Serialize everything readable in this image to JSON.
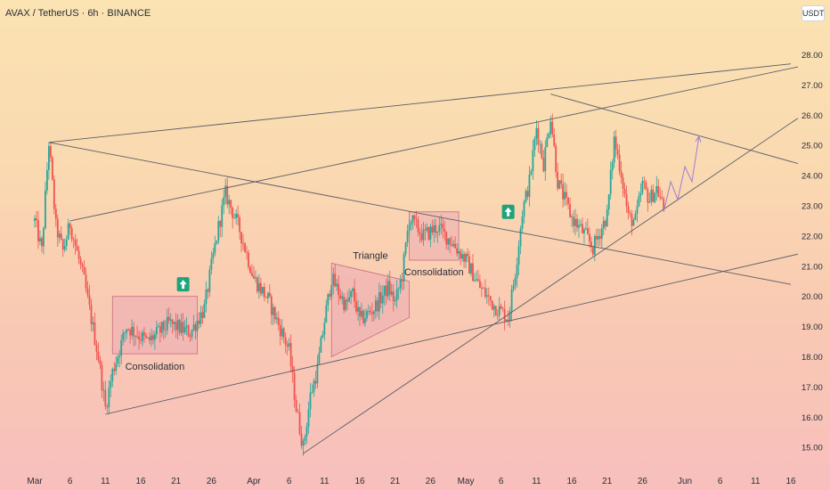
{
  "symbol_line": "AVAX / TetherUS · 6h · BINANCE",
  "currency_badge": "USDT",
  "chart_data": {
    "type": "candlestick",
    "symbol": "AVAX / TetherUS",
    "interval": "6h",
    "exchange": "BINANCE",
    "ylim": [
      14.5,
      28.6
    ],
    "y_ticks": [
      "15.00",
      "16.00",
      "17.00",
      "18.00",
      "19.00",
      "20.00",
      "21.00",
      "22.00",
      "23.00",
      "24.00",
      "25.00",
      "26.00",
      "27.00",
      "28.00"
    ],
    "x_ticks": [
      "Mar",
      "6",
      "11",
      "16",
      "21",
      "26",
      "Apr",
      "6",
      "11",
      "16",
      "21",
      "26",
      "May",
      "6",
      "11",
      "16",
      "21",
      "26",
      "Jun",
      "6",
      "11",
      "16"
    ],
    "price_path_anchors": [
      {
        "date": "Mar 1",
        "price": 22.5
      },
      {
        "date": "Mar 2",
        "price": 21.5
      },
      {
        "date": "Mar 3",
        "price": 25.1
      },
      {
        "date": "Mar 4",
        "price": 22.3
      },
      {
        "date": "Mar 5",
        "price": 21.5
      },
      {
        "date": "Mar 6",
        "price": 22.4
      },
      {
        "date": "Mar 8",
        "price": 20.5
      },
      {
        "date": "Mar 10",
        "price": 18.0
      },
      {
        "date": "Mar 11",
        "price": 16.3
      },
      {
        "date": "Mar 12",
        "price": 17.5
      },
      {
        "date": "Mar 14",
        "price": 19.0
      },
      {
        "date": "Mar 17",
        "price": 18.5
      },
      {
        "date": "Mar 20",
        "price": 19.1
      },
      {
        "date": "Mar 23",
        "price": 18.8
      },
      {
        "date": "Mar 25",
        "price": 19.6
      },
      {
        "date": "Mar 26",
        "price": 21.0
      },
      {
        "date": "Mar 27",
        "price": 22.3
      },
      {
        "date": "Mar 28",
        "price": 23.4
      },
      {
        "date": "Mar 30",
        "price": 22.2
      },
      {
        "date": "Apr 1",
        "price": 20.6
      },
      {
        "date": "Apr 3",
        "price": 19.9
      },
      {
        "date": "Apr 5",
        "price": 18.8
      },
      {
        "date": "Apr 6",
        "price": 18.2
      },
      {
        "date": "Apr 7",
        "price": 16.3
      },
      {
        "date": "Apr 8",
        "price": 15.0
      },
      {
        "date": "Apr 9",
        "price": 16.7
      },
      {
        "date": "Apr 10",
        "price": 17.6
      },
      {
        "date": "Apr 11",
        "price": 19.2
      },
      {
        "date": "Apr 12",
        "price": 20.6
      },
      {
        "date": "Apr 14",
        "price": 19.7
      },
      {
        "date": "Apr 15",
        "price": 20.1
      },
      {
        "date": "Apr 16",
        "price": 19.2
      },
      {
        "date": "Apr 18",
        "price": 19.6
      },
      {
        "date": "Apr 20",
        "price": 20.3
      },
      {
        "date": "Apr 21",
        "price": 19.8
      },
      {
        "date": "Apr 22",
        "price": 20.7
      },
      {
        "date": "Apr 23",
        "price": 22.6
      },
      {
        "date": "Apr 25",
        "price": 22.0
      },
      {
        "date": "Apr 27",
        "price": 22.3
      },
      {
        "date": "Apr 29",
        "price": 21.8
      },
      {
        "date": "May 1",
        "price": 21.2
      },
      {
        "date": "May 3",
        "price": 20.3
      },
      {
        "date": "May 5",
        "price": 19.7
      },
      {
        "date": "May 7",
        "price": 19.3
      },
      {
        "date": "May 8",
        "price": 20.8
      },
      {
        "date": "May 9",
        "price": 22.8
      },
      {
        "date": "May 10",
        "price": 23.8
      },
      {
        "date": "May 11",
        "price": 25.6
      },
      {
        "date": "May 12",
        "price": 24.4
      },
      {
        "date": "May 13",
        "price": 26.0
      },
      {
        "date": "May 14",
        "price": 23.8
      },
      {
        "date": "May 16",
        "price": 22.6
      },
      {
        "date": "May 18",
        "price": 22.0
      },
      {
        "date": "May 19",
        "price": 21.6
      },
      {
        "date": "May 21",
        "price": 22.7
      },
      {
        "date": "May 22",
        "price": 25.2
      },
      {
        "date": "May 23",
        "price": 24.1
      },
      {
        "date": "May 24",
        "price": 22.6
      },
      {
        "date": "May 25",
        "price": 22.5
      },
      {
        "date": "May 26",
        "price": 23.7
      },
      {
        "date": "May 27",
        "price": 23.2
      },
      {
        "date": "May 28",
        "price": 23.6
      },
      {
        "date": "May 29",
        "price": 22.9
      }
    ],
    "projection_path": [
      {
        "date": "May 29",
        "price": 22.8
      },
      {
        "date": "May 30",
        "price": 23.8
      },
      {
        "date": "May 31",
        "price": 23.2
      },
      {
        "date": "Jun 1",
        "price": 24.3
      },
      {
        "date": "Jun 2",
        "price": 23.8
      },
      {
        "date": "Jun 3",
        "price": 25.3
      }
    ],
    "trend_lines": [
      {
        "from": {
          "date": "Mar 3",
          "price": 25.1
        },
        "to": {
          "date": "Jun 16",
          "price": 27.7
        }
      },
      {
        "from": {
          "date": "Mar 3",
          "price": 25.1
        },
        "to": {
          "date": "Jun 16",
          "price": 20.4
        }
      },
      {
        "from": {
          "date": "Mar 6",
          "price": 22.5
        },
        "to": {
          "date": "Jun 17",
          "price": 27.6
        }
      },
      {
        "from": {
          "date": "Mar 11",
          "price": 16.1
        },
        "to": {
          "date": "Jun 17",
          "price": 21.4
        }
      },
      {
        "from": {
          "date": "Apr 8",
          "price": 14.8
        },
        "to": {
          "date": "Jun 17",
          "price": 25.9
        }
      },
      {
        "from": {
          "date": "May 13",
          "price": 26.7
        },
        "to": {
          "date": "Jun 17",
          "price": 24.4
        }
      }
    ],
    "pattern_boxes": [
      {
        "label": "Consolidation",
        "start": "Mar 12",
        "end": "Mar 24",
        "low": 18.1,
        "high": 20.0
      },
      {
        "label": "Consolidation",
        "start": "Apr 23",
        "end": "Apr 30",
        "low": 21.2,
        "high": 22.8
      }
    ],
    "triangle": {
      "label": "Triangle",
      "points": [
        {
          "date": "Apr 12",
          "price": 21.1
        },
        {
          "date": "Apr 23",
          "price": 20.5
        },
        {
          "date": "Apr 23",
          "price": 19.3
        },
        {
          "date": "Apr 12",
          "price": 18.0
        }
      ]
    },
    "breakout_markers": [
      {
        "date": "Mar 22",
        "price": 20.4
      },
      {
        "date": "May 7",
        "price": 22.8
      }
    ],
    "grid": false,
    "colors": {
      "up": "#26a69a",
      "down": "#ef5350",
      "lines": "#5b5e66",
      "box_fill": "#e8a4b4",
      "box_stroke": "#c96b84",
      "projection": "#9b7fd4",
      "marker": "#1fa37a"
    }
  }
}
